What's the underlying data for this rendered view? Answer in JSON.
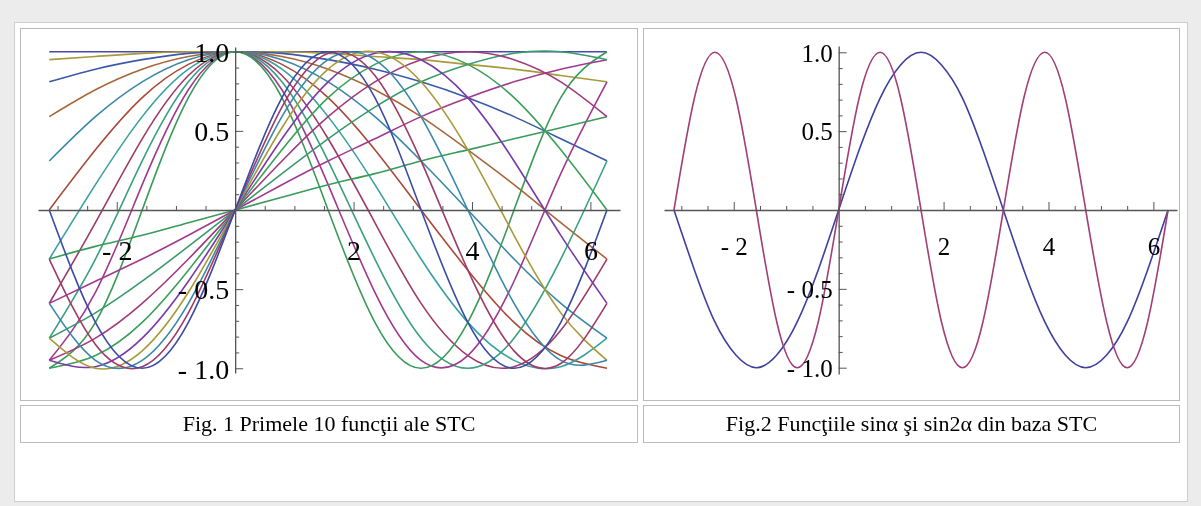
{
  "chart_data": [
    {
      "type": "line",
      "title": "Fig. 1 Primele 10 funcţii ale STC",
      "x": [
        -3.14,
        -2.36,
        -1.57,
        -0.79,
        0,
        0.79,
        1.57,
        2.36,
        3.14,
        3.93,
        4.71,
        5.5,
        6.28
      ],
      "series": [
        {
          "color": "#4a4aa8",
          "values": [
            1,
            1,
            1,
            1,
            1,
            1,
            1,
            1,
            1,
            1,
            1,
            1,
            1
          ]
        },
        {
          "color": "#a89a3a",
          "values": [
            0.95,
            0.97,
            0.99,
            1.0,
            1,
            1.0,
            0.99,
            0.97,
            0.95,
            0.92,
            0.89,
            0.85,
            0.81
          ]
        },
        {
          "color": "#3a5aa8",
          "values": [
            0.81,
            0.89,
            0.95,
            0.99,
            1,
            0.99,
            0.95,
            0.89,
            0.81,
            0.71,
            0.59,
            0.45,
            0.31
          ]
        },
        {
          "color": "#a8663a",
          "values": [
            0.59,
            0.76,
            0.89,
            0.97,
            1,
            0.97,
            0.89,
            0.76,
            0.59,
            0.38,
            0.16,
            -0.08,
            -0.31
          ]
        },
        {
          "color": "#3a88a8",
          "values": [
            0.31,
            0.59,
            0.81,
            0.95,
            1,
            0.95,
            0.81,
            0.59,
            0.31,
            0,
            -0.31,
            -0.59,
            -0.81
          ]
        },
        {
          "color": "#a84a3a",
          "values": [
            0,
            0.38,
            0.71,
            0.92,
            1,
            0.92,
            0.71,
            0.38,
            0,
            -0.38,
            -0.71,
            -0.92,
            -1
          ]
        },
        {
          "color": "#3aa0a0",
          "values": [
            -0.31,
            0.16,
            0.59,
            0.89,
            1,
            0.89,
            0.59,
            0.16,
            -0.31,
            -0.71,
            -0.95,
            -0.99,
            -0.81
          ]
        },
        {
          "color": "#a03a66",
          "values": [
            -0.59,
            -0.08,
            0.45,
            0.85,
            1,
            0.85,
            0.45,
            -0.08,
            -0.59,
            -0.92,
            -0.99,
            -0.76,
            -0.31
          ]
        },
        {
          "color": "#3aa080",
          "values": [
            -0.81,
            -0.31,
            0.31,
            0.81,
            1,
            0.81,
            0.31,
            -0.31,
            -0.81,
            -1,
            -0.81,
            -0.31,
            0.31
          ]
        },
        {
          "color": "#a03a90",
          "values": [
            -0.95,
            -0.52,
            0.16,
            0.76,
            1,
            0.76,
            0.16,
            -0.52,
            -0.95,
            -0.92,
            -0.45,
            0.23,
            0.81
          ]
        },
        {
          "color": "#3a9a5a",
          "values": [
            -1,
            -0.71,
            0,
            0.71,
            1,
            0.71,
            0,
            -0.71,
            -1,
            -0.71,
            0,
            0.71,
            1
          ]
        },
        {
          "color": "#3a9a5a",
          "values": [
            -0.31,
            -0.23,
            -0.16,
            -0.08,
            0,
            0.08,
            0.16,
            0.23,
            0.31,
            0.38,
            0.45,
            0.52,
            0.59
          ]
        },
        {
          "color": "#a03a90",
          "values": [
            -0.59,
            -0.45,
            -0.31,
            -0.16,
            0,
            0.16,
            0.31,
            0.45,
            0.59,
            0.71,
            0.81,
            0.89,
            0.95
          ]
        },
        {
          "color": "#3a9a6a",
          "values": [
            -0.81,
            -0.65,
            -0.45,
            -0.23,
            0,
            0.23,
            0.45,
            0.65,
            0.81,
            0.92,
            0.99,
            1.0,
            0.95
          ]
        },
        {
          "color": "#a03a80",
          "values": [
            -0.95,
            -0.81,
            -0.59,
            -0.31,
            0,
            0.31,
            0.59,
            0.81,
            0.95,
            1,
            0.95,
            0.81,
            0.59
          ]
        },
        {
          "color": "#3aa05a",
          "values": [
            -1,
            -0.92,
            -0.71,
            -0.38,
            0,
            0.38,
            0.71,
            0.92,
            1,
            0.92,
            0.71,
            0.38,
            0
          ]
        },
        {
          "color": "#7a3aa8",
          "values": [
            -0.95,
            -0.99,
            -0.81,
            -0.45,
            0,
            0.45,
            0.81,
            0.99,
            0.95,
            0.71,
            0.31,
            -0.16,
            -0.59
          ]
        },
        {
          "color": "#a89a3a",
          "values": [
            -0.81,
            -1.0,
            -0.89,
            -0.52,
            0,
            0.52,
            0.89,
            1.0,
            0.81,
            0.38,
            -0.16,
            -0.65,
            -0.95
          ]
        },
        {
          "color": "#3a88a8",
          "values": [
            -0.59,
            -0.95,
            -0.95,
            -0.59,
            0,
            0.59,
            0.95,
            0.95,
            0.59,
            0,
            -0.59,
            -0.95,
            -0.95
          ]
        },
        {
          "color": "#a03a66",
          "values": [
            -0.31,
            -0.85,
            -0.99,
            -0.65,
            0,
            0.65,
            0.99,
            0.85,
            0.31,
            -0.38,
            -0.89,
            -0.97,
            -0.59
          ]
        },
        {
          "color": "#3a4aa8",
          "values": [
            0,
            -0.71,
            -1,
            -0.71,
            0,
            0.71,
            1,
            0.71,
            0,
            -0.71,
            -1,
            -0.71,
            0
          ]
        }
      ],
      "xlim": [
        -3.33,
        6.5
      ],
      "ylim": [
        -1.03,
        1.03
      ],
      "xticks": [
        {
          "value": -3,
          "label": null
        },
        {
          "value": -2.5,
          "label": null
        },
        {
          "value": -2,
          "label": "- 2"
        },
        {
          "value": -1.5,
          "label": null
        },
        {
          "value": -1,
          "label": null
        },
        {
          "value": -0.5,
          "label": null
        },
        {
          "value": 0.5,
          "label": null
        },
        {
          "value": 1,
          "label": null
        },
        {
          "value": 1.5,
          "label": null
        },
        2,
        {
          "value": 2.5,
          "label": null
        },
        {
          "value": 3,
          "label": null
        },
        {
          "value": 3.5,
          "label": null
        },
        4,
        {
          "value": 4.5,
          "label": null
        },
        {
          "value": 5,
          "label": null
        },
        {
          "value": 5.5,
          "label": null
        },
        6
      ],
      "yticks": [
        {
          "value": -1,
          "label": "- 1.0"
        },
        {
          "value": -0.9,
          "label": null
        },
        {
          "value": -0.8,
          "label": null
        },
        {
          "value": -0.7,
          "label": null
        },
        {
          "value": -0.6,
          "label": null
        },
        {
          "value": -0.5,
          "label": "- 0.5"
        },
        {
          "value": -0.4,
          "label": null
        },
        {
          "value": -0.3,
          "label": null
        },
        {
          "value": -0.2,
          "label": null
        },
        {
          "value": -0.1,
          "label": null
        },
        {
          "value": 0.1,
          "label": null
        },
        {
          "value": 0.2,
          "label": null
        },
        {
          "value": 0.3,
          "label": null
        },
        {
          "value": 0.4,
          "label": null
        },
        {
          "value": 0.5,
          "label": "0.5"
        },
        {
          "value": 0.6,
          "label": null
        },
        {
          "value": 0.7,
          "label": null
        },
        {
          "value": 0.8,
          "label": null
        },
        {
          "value": 0.9,
          "label": null
        },
        {
          "value": 1,
          "label": "1.0"
        }
      ],
      "grid": false,
      "marker": "none",
      "line_style": "solid"
    },
    {
      "type": "line",
      "title": "Fig.2 Funcţiile sinα şi sin2α din baza STC",
      "x": [
        -3.14,
        -2.75,
        -2.36,
        -1.96,
        -1.57,
        -1.18,
        -0.79,
        -0.39,
        0,
        0.39,
        0.79,
        1.18,
        1.57,
        1.96,
        2.36,
        2.75,
        3.14,
        3.53,
        3.93,
        4.32,
        4.71,
        5.11,
        5.5,
        5.89,
        6.28
      ],
      "series": [
        {
          "color": "#3f3fa0",
          "values": [
            0,
            -0.38,
            -0.71,
            -0.92,
            -1,
            -0.92,
            -0.71,
            -0.38,
            0,
            0.38,
            0.71,
            0.92,
            1,
            0.92,
            0.71,
            0.38,
            0,
            -0.38,
            -0.71,
            -0.92,
            -1,
            -0.92,
            -0.71,
            -0.38,
            0
          ]
        },
        {
          "color": "#a03f78",
          "values": [
            0,
            0.71,
            1,
            0.71,
            0,
            -0.71,
            -1,
            -0.71,
            0,
            0.71,
            1,
            0.71,
            0,
            -0.71,
            -1,
            -0.71,
            0,
            0.71,
            1,
            0.71,
            0,
            -0.71,
            -1,
            -0.71,
            0
          ]
        }
      ],
      "xlim": [
        -3.33,
        6.45
      ],
      "ylim": [
        -1.04,
        1.04
      ],
      "xticks": [
        {
          "value": -3,
          "label": null
        },
        {
          "value": -2.5,
          "label": null
        },
        {
          "value": -2,
          "label": "- 2"
        },
        {
          "value": -1.5,
          "label": null
        },
        {
          "value": -1,
          "label": null
        },
        {
          "value": -0.5,
          "label": null
        },
        {
          "value": 0.5,
          "label": null
        },
        {
          "value": 1,
          "label": null
        },
        {
          "value": 1.5,
          "label": null
        },
        2,
        {
          "value": 2.5,
          "label": null
        },
        {
          "value": 3,
          "label": null
        },
        {
          "value": 3.5,
          "label": null
        },
        4,
        {
          "value": 4.5,
          "label": null
        },
        {
          "value": 5,
          "label": null
        },
        {
          "value": 5.5,
          "label": null
        },
        6
      ],
      "yticks": [
        {
          "value": -1,
          "label": "- 1.0"
        },
        {
          "value": -0.9,
          "label": null
        },
        {
          "value": -0.8,
          "label": null
        },
        {
          "value": -0.7,
          "label": null
        },
        {
          "value": -0.6,
          "label": null
        },
        {
          "value": -0.5,
          "label": "- 0.5"
        },
        {
          "value": -0.4,
          "label": null
        },
        {
          "value": -0.3,
          "label": null
        },
        {
          "value": -0.2,
          "label": null
        },
        {
          "value": -0.1,
          "label": null
        },
        {
          "value": 0.1,
          "label": null
        },
        {
          "value": 0.2,
          "label": null
        },
        {
          "value": 0.3,
          "label": null
        },
        {
          "value": 0.4,
          "label": null
        },
        {
          "value": 0.5,
          "label": "0.5"
        },
        {
          "value": 0.6,
          "label": null
        },
        {
          "value": 0.7,
          "label": null
        },
        {
          "value": 0.8,
          "label": null
        },
        {
          "value": 0.9,
          "label": null
        },
        {
          "value": 1,
          "label": "1.0"
        }
      ],
      "grid": false,
      "marker": "none",
      "line_style": "solid"
    }
  ]
}
